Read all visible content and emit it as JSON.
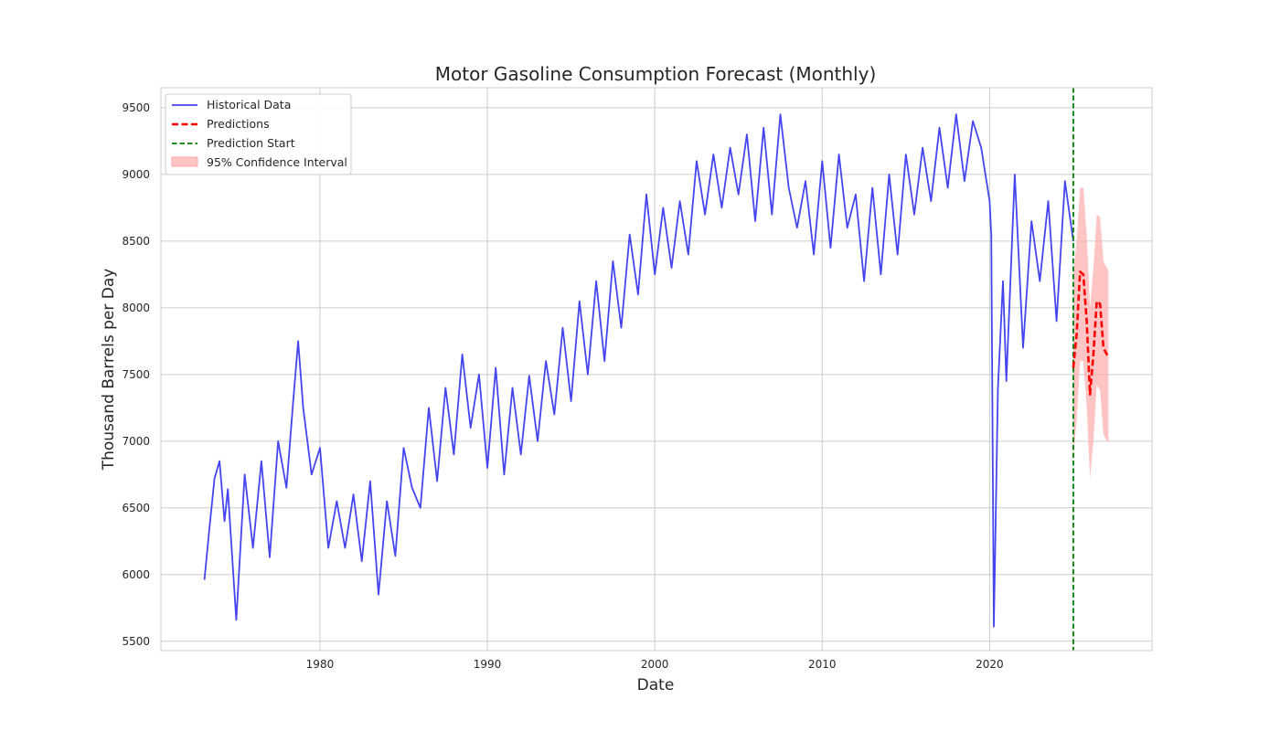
{
  "chart_data": {
    "type": "line",
    "title": "Motor Gasoline Consumption Forecast (Monthly)",
    "xlabel": "Date",
    "ylabel": "Thousand Barrels per Day",
    "xlim": [
      1970.5,
      2029.7
    ],
    "ylim": [
      5430,
      9650
    ],
    "x_ticks": [
      1980,
      1990,
      2000,
      2010,
      2020
    ],
    "y_ticks": [
      5500,
      6000,
      6500,
      7000,
      7500,
      8000,
      8500,
      9000,
      9500
    ],
    "grid": true,
    "legend_position": "top-left",
    "legend": [
      "Historical Data",
      "Predictions",
      "Prediction Start",
      "95% Confidence Interval"
    ],
    "series": [
      {
        "name": "Historical Data",
        "color": "#4545f0",
        "style": "solid",
        "x": [
          1973.1,
          1973.4,
          1973.7,
          1974.0,
          1974.3,
          1974.5,
          1975.0,
          1975.5,
          1976.0,
          1976.5,
          1977.0,
          1977.5,
          1978.0,
          1978.4,
          1978.7,
          1979.0,
          1979.5,
          1980.0,
          1980.5,
          1981.0,
          1981.5,
          1982.0,
          1982.5,
          1983.0,
          1983.5,
          1984.0,
          1984.5,
          1985.0,
          1985.5,
          1986.0,
          1986.5,
          1987.0,
          1987.5,
          1988.0,
          1988.5,
          1989.0,
          1989.5,
          1990.0,
          1990.5,
          1991.0,
          1991.5,
          1992.0,
          1992.5,
          1993.0,
          1993.5,
          1994.0,
          1994.5,
          1995.0,
          1995.5,
          1996.0,
          1996.5,
          1997.0,
          1997.5,
          1998.0,
          1998.5,
          1999.0,
          1999.5,
          2000.0,
          2000.5,
          2001.0,
          2001.5,
          2002.0,
          2002.5,
          2003.0,
          2003.5,
          2004.0,
          2004.5,
          2005.0,
          2005.5,
          2006.0,
          2006.5,
          2007.0,
          2007.5,
          2008.0,
          2008.5,
          2009.0,
          2009.5,
          2010.0,
          2010.5,
          2011.0,
          2011.5,
          2012.0,
          2012.5,
          2013.0,
          2013.5,
          2014.0,
          2014.5,
          2015.0,
          2015.5,
          2016.0,
          2016.5,
          2017.0,
          2017.5,
          2018.0,
          2018.5,
          2019.0,
          2019.5,
          2020.0,
          2020.1,
          2020.25,
          2020.5,
          2020.8,
          2021.0,
          2021.5,
          2022.0,
          2022.5,
          2023.0,
          2023.5,
          2024.0,
          2024.5,
          2025.0
        ],
        "y": [
          5960,
          6350,
          6720,
          6850,
          6400,
          6640,
          5660,
          6750,
          6200,
          6850,
          6130,
          7000,
          6650,
          7300,
          7750,
          7250,
          6750,
          6950,
          6200,
          6550,
          6200,
          6600,
          6100,
          6700,
          5850,
          6550,
          6140,
          6950,
          6650,
          6500,
          7250,
          6700,
          7400,
          6900,
          7650,
          7100,
          7500,
          6800,
          7550,
          6750,
          7400,
          6900,
          7490,
          7000,
          7600,
          7200,
          7850,
          7300,
          8050,
          7500,
          8200,
          7600,
          8350,
          7850,
          8550,
          8100,
          8850,
          8250,
          8750,
          8300,
          8800,
          8400,
          9100,
          8700,
          9150,
          8750,
          9200,
          8850,
          9300,
          8650,
          9350,
          8700,
          9450,
          8900,
          8600,
          8950,
          8400,
          9100,
          8450,
          9150,
          8600,
          8850,
          8200,
          8900,
          8250,
          9000,
          8400,
          9150,
          8700,
          9200,
          8800,
          9350,
          8900,
          9450,
          8950,
          9400,
          9200,
          8800,
          8550,
          5610,
          7400,
          8200,
          7450,
          9000,
          7700,
          8650,
          8200,
          8800,
          7900,
          8950,
          8500
        ]
      },
      {
        "name": "Predictions",
        "color": "#ff0000",
        "style": "dashed",
        "x": [
          2025.0,
          2025.2,
          2025.4,
          2025.6,
          2025.8,
          2026.0,
          2026.2,
          2026.4,
          2026.6,
          2026.8,
          2027.0,
          2027.1
        ],
        "y": [
          7550,
          7800,
          8270,
          8250,
          7900,
          7350,
          7650,
          8050,
          8030,
          7700,
          7650,
          7640
        ]
      }
    ],
    "confidence_interval": {
      "name": "95% Confidence Interval",
      "color": "#ffb0b0",
      "x": [
        2025.0,
        2025.2,
        2025.4,
        2025.6,
        2025.8,
        2026.0,
        2026.2,
        2026.4,
        2026.6,
        2026.8,
        2027.0,
        2027.1
      ],
      "lower": [
        6880,
        7150,
        7600,
        7600,
        7250,
        6720,
        7000,
        7420,
        7380,
        7050,
        7000,
        7000
      ],
      "upper": [
        8250,
        8500,
        8900,
        8900,
        8550,
        8000,
        8300,
        8700,
        8680,
        8350,
        8300,
        8280
      ]
    },
    "vertical_line": {
      "name": "Prediction Start",
      "x": 2025.0,
      "color": "#008000",
      "style": "dashed"
    }
  }
}
